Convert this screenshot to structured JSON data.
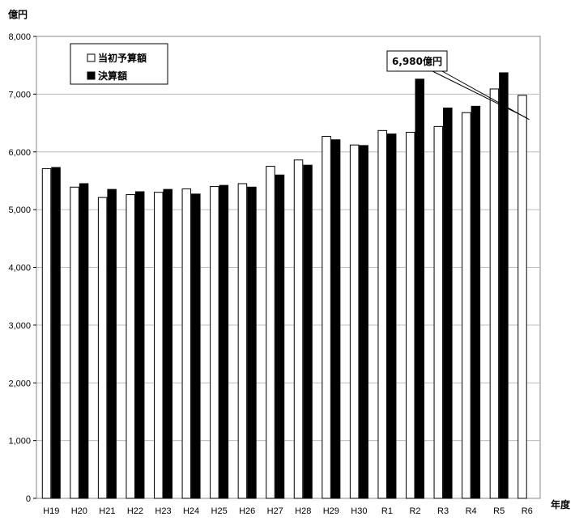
{
  "chart_data": {
    "type": "bar",
    "ylabel": "億円",
    "xlabel": "年度",
    "ylim": [
      0,
      8000
    ],
    "yticks": [
      0,
      1000,
      2000,
      3000,
      4000,
      5000,
      6000,
      7000,
      8000
    ],
    "ytick_labels": [
      "0",
      "1,000",
      "2,000",
      "3,000",
      "4,000",
      "5,000",
      "6,000",
      "7,000",
      "8,000"
    ],
    "categories": [
      "H19",
      "H20",
      "H21",
      "H22",
      "H23",
      "H24",
      "H25",
      "H26",
      "H27",
      "H28",
      "H29",
      "H30",
      "R1",
      "R2",
      "R3",
      "R4",
      "R5",
      "R6"
    ],
    "series": [
      {
        "name": "当初予算額",
        "color": "#ffffff",
        "values": [
          5710,
          5390,
          5210,
          5260,
          5300,
          5360,
          5400,
          5450,
          5750,
          5860,
          6270,
          6120,
          6370,
          6340,
          6440,
          6680,
          7090,
          6980
        ]
      },
      {
        "name": "決算額",
        "color": "#000000",
        "values": [
          5730,
          5450,
          5350,
          5310,
          5350,
          5270,
          5420,
          5390,
          5600,
          5770,
          6210,
          6110,
          6310,
          7260,
          6760,
          6790,
          7370,
          null
        ]
      }
    ],
    "legend_position": "top-left",
    "grid": false,
    "annotation": {
      "text": "6,980億円",
      "target_category": "R6",
      "target_series": "当初予算額"
    }
  }
}
